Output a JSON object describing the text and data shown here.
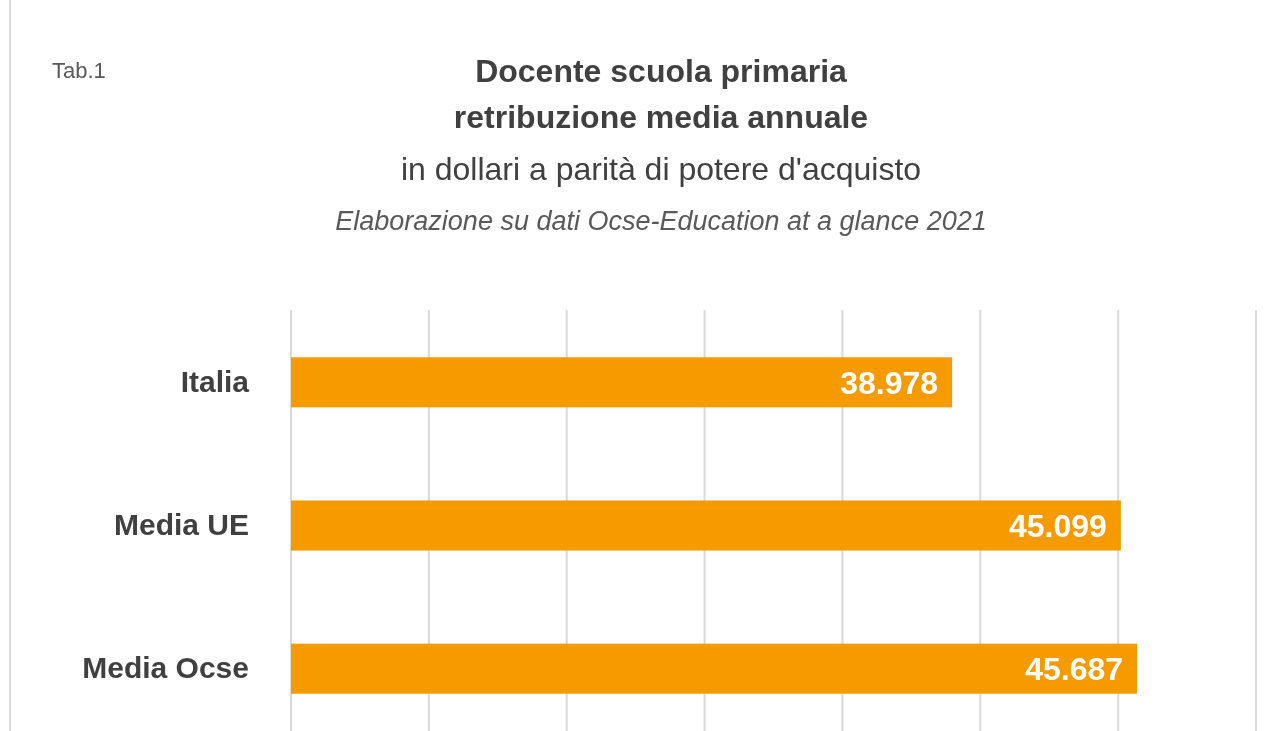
{
  "chart_data": {
    "type": "bar",
    "orientation": "horizontal",
    "title": "Docente scuola primaria retribuzione media annuale",
    "subtitle": "in dollari a parità di potere d'acquisto",
    "annotations": [
      "Tab.1",
      "Elaborazione su dati Ocse-Education at a glance 2021"
    ],
    "categories": [
      "Italia",
      "Media UE",
      "Media Ocse"
    ],
    "values": [
      38978,
      45099,
      45687
    ],
    "value_labels": [
      "38.978",
      "45.099",
      "45.687"
    ],
    "color": "#f59b00",
    "xlim": [
      15000,
      50000
    ],
    "xticks": [
      {
        "value": 15000,
        "label": null
      },
      {
        "value": 20000,
        "label": null
      },
      {
        "value": 25000,
        "label": null
      },
      {
        "value": 30000,
        "label": null
      },
      {
        "value": 35000,
        "label": null
      },
      {
        "value": 40000,
        "label": null
      },
      {
        "value": 45000,
        "label": null
      },
      {
        "value": 50000,
        "label": null
      }
    ],
    "grid": "x",
    "tick_labels": "y"
  }
}
